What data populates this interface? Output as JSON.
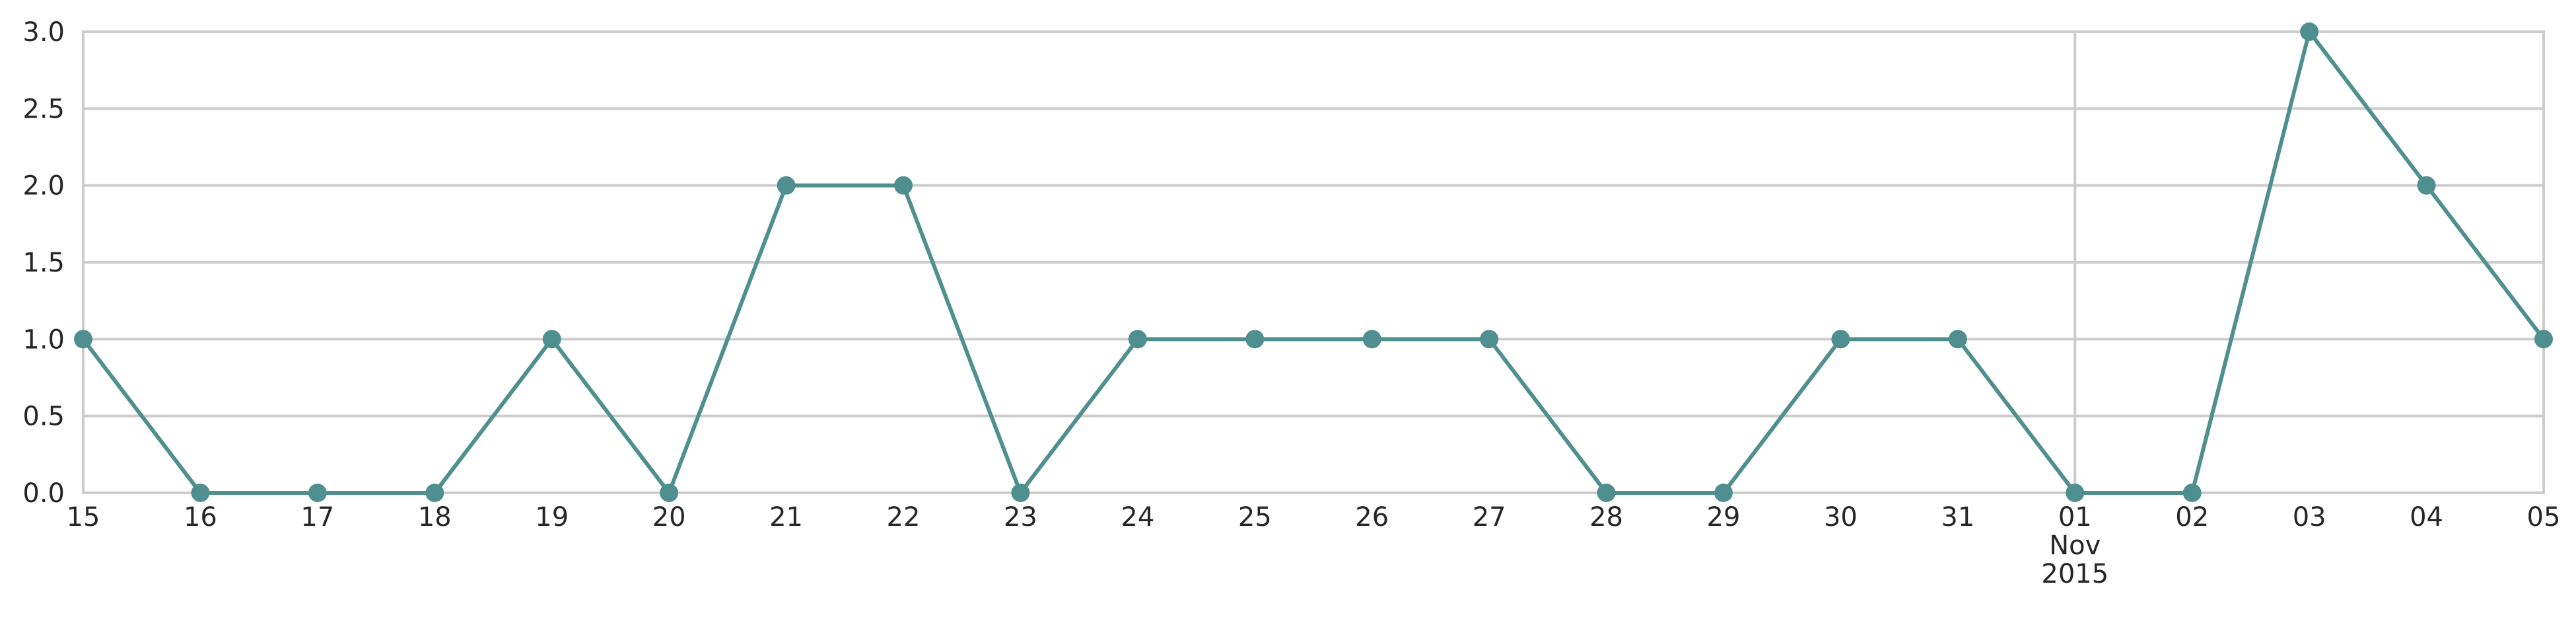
{
  "chart_data": {
    "type": "line",
    "title": "",
    "xlabel": "",
    "ylabel": "",
    "x": [
      "2015-10-15",
      "2015-10-16",
      "2015-10-17",
      "2015-10-18",
      "2015-10-19",
      "2015-10-20",
      "2015-10-21",
      "2015-10-22",
      "2015-10-23",
      "2015-10-24",
      "2015-10-25",
      "2015-10-26",
      "2015-10-27",
      "2015-10-28",
      "2015-10-29",
      "2015-10-30",
      "2015-10-31",
      "2015-11-01",
      "2015-11-02",
      "2015-11-03",
      "2015-11-04",
      "2015-11-05"
    ],
    "series": [
      {
        "values": [
          1,
          0,
          0,
          0,
          1,
          0,
          2,
          2,
          0,
          1,
          1,
          1,
          1,
          0,
          0,
          1,
          1,
          0,
          0,
          3,
          2,
          1
        ]
      }
    ],
    "xticks": [
      "15",
      "16",
      "17",
      "18",
      "19",
      "20",
      "21",
      "22",
      "23",
      "24",
      "25",
      "26",
      "27",
      "28",
      "29",
      "30",
      "31",
      "01\nNov\n2015",
      "02",
      "03",
      "04",
      "05"
    ],
    "yticks": [
      "0.0",
      "0.5",
      "1.0",
      "1.5",
      "2.0",
      "2.5",
      "3.0"
    ],
    "ylim": [
      0,
      3
    ],
    "grid": true,
    "style": {
      "line_color": "#4f8f8f",
      "grid_color": "#cccccc",
      "background": "#ffffff"
    }
  }
}
